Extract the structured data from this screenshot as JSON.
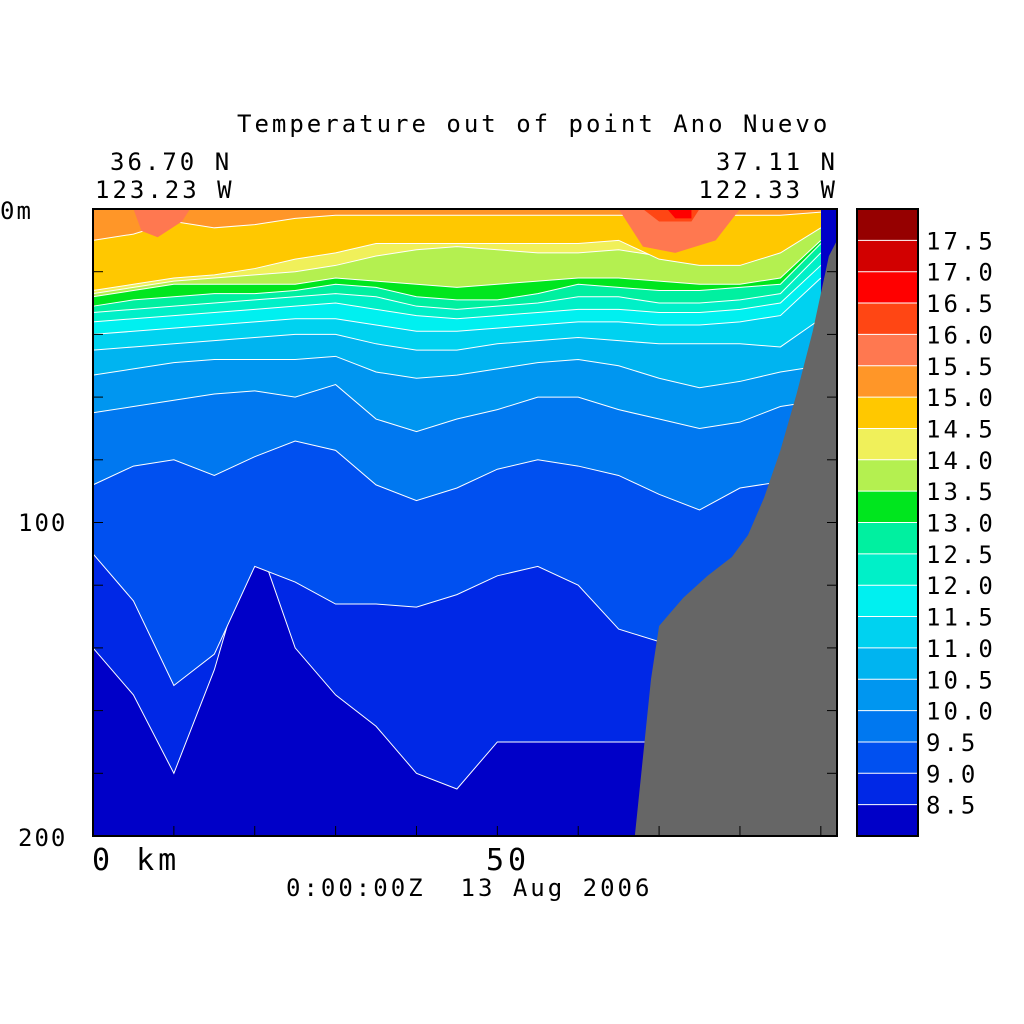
{
  "chart_data": {
    "type": "heatmap",
    "title": "Temperature out of point Ano Nuevo",
    "corner_labels": {
      "left_lat": "36.70 N",
      "left_lon": "123.23 W",
      "right_lat": "37.11 N",
      "right_lon": "122.33 W"
    },
    "y_axis": {
      "unit_label": "0m",
      "tick_labels": [
        "100",
        "200"
      ],
      "range": [
        0,
        200
      ],
      "inverted": true
    },
    "x_axis": {
      "tick_labels": [
        "0 km",
        "50"
      ],
      "range": [
        0,
        92
      ]
    },
    "timestamp": "0:00:00Z  13 Aug 2006",
    "colorbar": {
      "levels": [
        "8.5",
        "9.0",
        "9.5",
        "10.0",
        "10.5",
        "11.0",
        "11.5",
        "12.0",
        "12.5",
        "13.0",
        "13.5",
        "14.0",
        "14.5",
        "15.0",
        "15.5",
        "16.0",
        "16.5",
        "17.0",
        "17.5"
      ],
      "colors": [
        "#0000c8",
        "#0028e6",
        "#0050f0",
        "#0078f0",
        "#0096f0",
        "#00b4f0",
        "#00d2f0",
        "#00f0f0",
        "#00f0c8",
        "#00f0a0",
        "#00e61e",
        "#b4f050",
        "#f0f05a",
        "#ffc800",
        "#ff9628",
        "#ff7850",
        "#ff4614",
        "#ff0000",
        "#d20000",
        "#960000"
      ]
    },
    "isotherm_depths_m": {
      "note_x_km": [
        0,
        5,
        10,
        15,
        20,
        25,
        30,
        35,
        40,
        45,
        50,
        55,
        60,
        65,
        70,
        75,
        80,
        85,
        90
      ],
      "t15_0": [
        10,
        8,
        4,
        6,
        5,
        3,
        2,
        2,
        2,
        2,
        2,
        2,
        2,
        2,
        2,
        2,
        2,
        2,
        1
      ],
      "t14_5": [
        26,
        24,
        22,
        21,
        19,
        16,
        14,
        11,
        11,
        11,
        11,
        11,
        11,
        10,
        16,
        18,
        18,
        14,
        6
      ],
      "t14_0": [
        27,
        25,
        23,
        22,
        21,
        20,
        18,
        15,
        13,
        12,
        13,
        14,
        14,
        13,
        15,
        17,
        17,
        12,
        6
      ],
      "t13_5": [
        28,
        26,
        24,
        24,
        24,
        24,
        22,
        23,
        24,
        25,
        24,
        23,
        22,
        22,
        23,
        24,
        24,
        22,
        10
      ],
      "t13_0": [
        31,
        29,
        28,
        27,
        27,
        26,
        24,
        25,
        28,
        29,
        29,
        27,
        24,
        25,
        26,
        26,
        25,
        24,
        11
      ],
      "t12_5": [
        33,
        32,
        31,
        30,
        29,
        28,
        27,
        28,
        31,
        32,
        31,
        30,
        28,
        28,
        30,
        30,
        29,
        27,
        14
      ],
      "t12_0": [
        36,
        35,
        34,
        33,
        32,
        31,
        30,
        32,
        34,
        35,
        34,
        33,
        32,
        32,
        33,
        33,
        32,
        30,
        18
      ],
      "t11_5": [
        40,
        39,
        38,
        37,
        36,
        35,
        35,
        37,
        39,
        39,
        38,
        37,
        36,
        36,
        37,
        37,
        36,
        34,
        22
      ],
      "t11_0": [
        45,
        44,
        43,
        42,
        41,
        40,
        40,
        43,
        45,
        45,
        43,
        42,
        41,
        42,
        43,
        43,
        43,
        44,
        35
      ],
      "t10_5": [
        53,
        51,
        49,
        48,
        48,
        48,
        47,
        52,
        54,
        53,
        51,
        49,
        48,
        50,
        54,
        57,
        55,
        52,
        50
      ],
      "t10_0": [
        65,
        63,
        61,
        59,
        58,
        60,
        56,
        67,
        71,
        67,
        64,
        60,
        60,
        64,
        67,
        70,
        68,
        63,
        61
      ],
      "t9_5": [
        88,
        82,
        80,
        85,
        79,
        74,
        77,
        88,
        93,
        89,
        83,
        80,
        82,
        85,
        91,
        96,
        89,
        87,
        91
      ],
      "t9_0": [
        110,
        125,
        152,
        142,
        114,
        119,
        126,
        126,
        127,
        123,
        117,
        114,
        120,
        134,
        138,
        130,
        120,
        117,
        120
      ],
      "t8_5": [
        140,
        155,
        180,
        147,
        103,
        140,
        155,
        165,
        180,
        185,
        170,
        170,
        170,
        170,
        170,
        170,
        170,
        170,
        170
      ]
    },
    "grid": false,
    "legend": "colorbar-right"
  }
}
